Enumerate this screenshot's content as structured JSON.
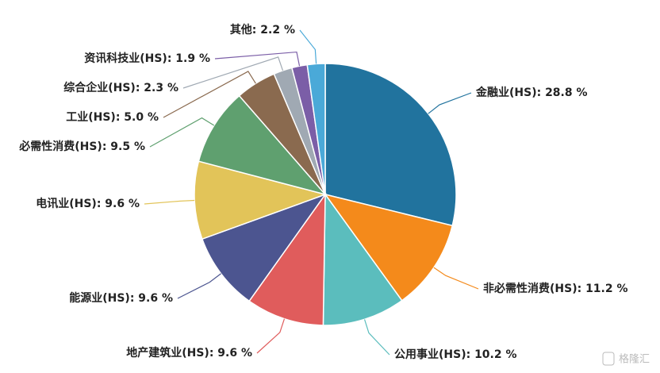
{
  "chart_data": {
    "type": "pie",
    "categories": [
      "金融业(HS)",
      "非必需性消费(HS)",
      "公用事业(HS)",
      "地产建筑业(HS)",
      "能源业(HS)",
      "电讯业(HS)",
      "必需性消费(HS)",
      "工业(HS)",
      "综合企业(HS)",
      "资讯科技业(HS)",
      "其他"
    ],
    "values": [
      28.8,
      11.2,
      10.2,
      9.6,
      9.6,
      9.6,
      9.5,
      5.0,
      2.3,
      1.9,
      2.2
    ],
    "labels": [
      "金融业(HS): 28.8 %",
      "非必需性消费(HS): 11.2 %",
      "公用事业(HS): 10.2 %",
      "地产建筑业(HS): 9.6 %",
      "能源业(HS): 9.6 %",
      "电讯业(HS): 9.6 %",
      "必需性消费(HS): 9.5 %",
      "工业(HS): 5.0 %",
      "综合企业(HS): 2.3 %",
      "资讯科技业(HS): 1.9 %",
      "其他: 2.2 %"
    ],
    "colors": [
      "#21739e",
      "#f48a1b",
      "#5bbdbd",
      "#e05c5c",
      "#4c5590",
      "#e2c459",
      "#5fa06f",
      "#8a6a4f",
      "#a0a9b3",
      "#7b5ea7",
      "#4aa9d8"
    ],
    "watermark": "格隆汇"
  }
}
